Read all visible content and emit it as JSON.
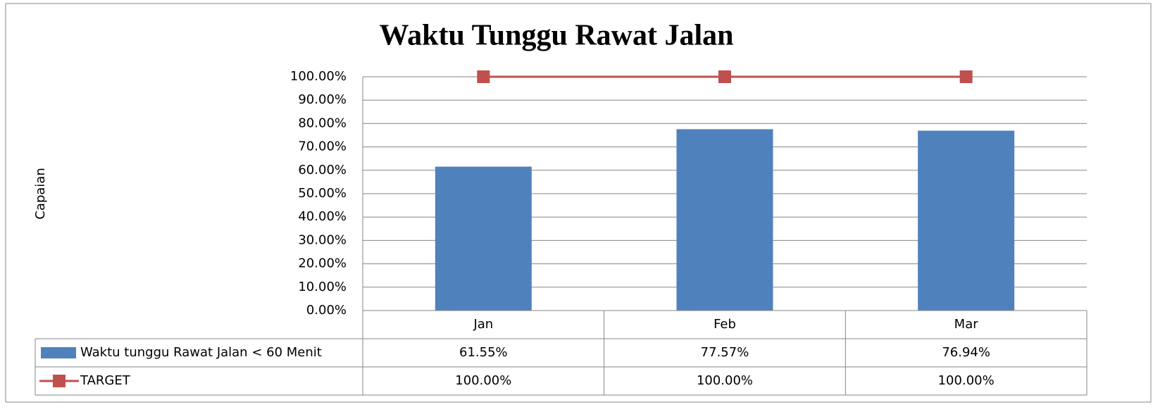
{
  "chart_data": {
    "type": "bar",
    "title": "Waktu Tunggu Rawat Jalan",
    "y_label": "Capaian",
    "categories": [
      "Jan",
      "Feb",
      "Mar"
    ],
    "series": [
      {
        "name": "Waktu tunggu Rawat Jalan < 60 Menit",
        "type": "bar",
        "color": "#4f81bd",
        "values": [
          61.55,
          77.57,
          76.94
        ],
        "value_labels": [
          "61.55%",
          "77.57%",
          "76.94%"
        ]
      },
      {
        "name": "TARGET",
        "type": "line",
        "color": "#c0504d",
        "values": [
          100,
          100,
          100
        ],
        "value_labels": [
          "100.00%",
          "100.00%",
          "100.00%"
        ]
      }
    ],
    "ylim": [
      0,
      100
    ],
    "yticks": [
      {
        "value": 0,
        "label": "0.00%"
      },
      {
        "value": 10,
        "label": "10.00%"
      },
      {
        "value": 20,
        "label": "20.00%"
      },
      {
        "value": 30,
        "label": "30.00%"
      },
      {
        "value": 40,
        "label": "40.00%"
      },
      {
        "value": 50,
        "label": "50.00%"
      },
      {
        "value": 60,
        "label": "60.00%"
      },
      {
        "value": 70,
        "label": "70.00%"
      },
      {
        "value": 80,
        "label": "80.00%"
      },
      {
        "value": 90,
        "label": "90.00%"
      },
      {
        "value": 100,
        "label": "100.00%"
      }
    ],
    "grid": true,
    "data_table": true
  }
}
